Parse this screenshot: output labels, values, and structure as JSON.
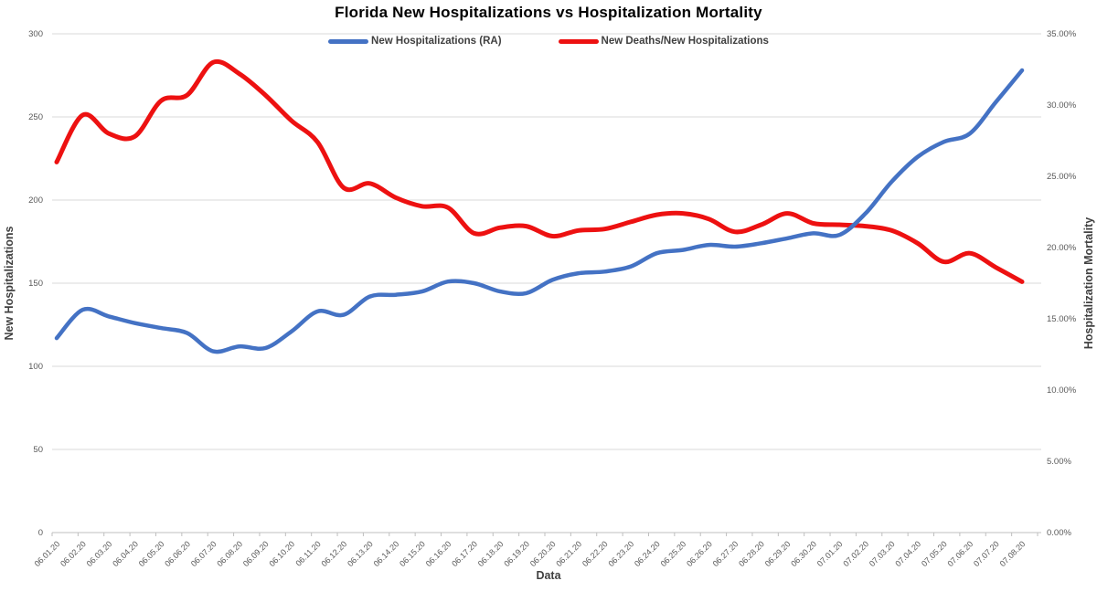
{
  "title": "Florida New Hospitalizations vs Hospitalization Mortality",
  "legend": [
    {
      "label": "New Hospitalizations (RA)",
      "color": "#4472C4"
    },
    {
      "label": "New Deaths/New Hospitalizations",
      "color": "#ED1111"
    }
  ],
  "axes": {
    "left_title": "New Hospitalizations",
    "right_title": "Hospitalization Mortality",
    "x_title": "Data",
    "left_tick_labels": [
      "0",
      "50",
      "100",
      "150",
      "200",
      "250",
      "300"
    ],
    "right_tick_labels": [
      "0.00%",
      "5.00%",
      "10.00%",
      "15.00%",
      "20.00%",
      "25.00%",
      "30.00%",
      "35.00%"
    ]
  },
  "chart_data": {
    "type": "line",
    "title": "Florida New Hospitalizations vs Hospitalization Mortality",
    "xlabel": "Data",
    "ylabel_left": "New Hospitalizations",
    "ylabel_right": "Hospitalization Mortality",
    "left_ylim": [
      0,
      300
    ],
    "right_ylim_percent": [
      0,
      35
    ],
    "grid": true,
    "smooth_lines": true,
    "legend_position": "top-center",
    "categories": [
      "06.01.20",
      "06.02.20",
      "06.03.20",
      "06.04.20",
      "06.05.20",
      "06.06.20",
      "06.07.20",
      "06.08.20",
      "06.09.20",
      "06.10.20",
      "06.11.20",
      "06.12.20",
      "06.13.20",
      "06.14.20",
      "06.15.20",
      "06.16.20",
      "06.17.20",
      "06.18.20",
      "06.19.20",
      "06.20.20",
      "06.21.20",
      "06.22.20",
      "06.23.20",
      "06.24.20",
      "06.25.20",
      "06.26.20",
      "06.27.20",
      "06.28.20",
      "06.29.20",
      "06.30.20",
      "07.01.20",
      "07.02.20",
      "07.03.20",
      "07.04.20",
      "07.05.20",
      "07.06.20",
      "07.07.20",
      "07.08.20"
    ],
    "series": [
      {
        "name": "New Hospitalizations (RA)",
        "axis": "left",
        "color": "#4472C4",
        "stroke_width": 4.5,
        "values": [
          117,
          134,
          130,
          126,
          123,
          120,
          109,
          112,
          111,
          121,
          133,
          131,
          142,
          143,
          145,
          151,
          150,
          145,
          144,
          152,
          156,
          157,
          160,
          168,
          170,
          173,
          172,
          174,
          177,
          180,
          179,
          192,
          211,
          226,
          235,
          240,
          259,
          278
        ]
      },
      {
        "name": "New Deaths/New Hospitalizations",
        "axis": "right",
        "unit": "percent",
        "color": "#ED1111",
        "stroke_width": 5,
        "values": [
          26.0,
          29.3,
          28.0,
          27.8,
          30.3,
          30.7,
          33.0,
          32.2,
          30.7,
          28.9,
          27.4,
          24.2,
          24.5,
          23.5,
          22.9,
          22.8,
          21.0,
          21.4,
          21.5,
          20.8,
          21.2,
          21.3,
          21.8,
          22.3,
          22.4,
          22.0,
          21.1,
          21.6,
          22.4,
          21.7,
          21.6,
          21.5,
          21.2,
          20.3,
          19.0,
          19.6,
          18.6,
          17.6
        ]
      }
    ]
  }
}
